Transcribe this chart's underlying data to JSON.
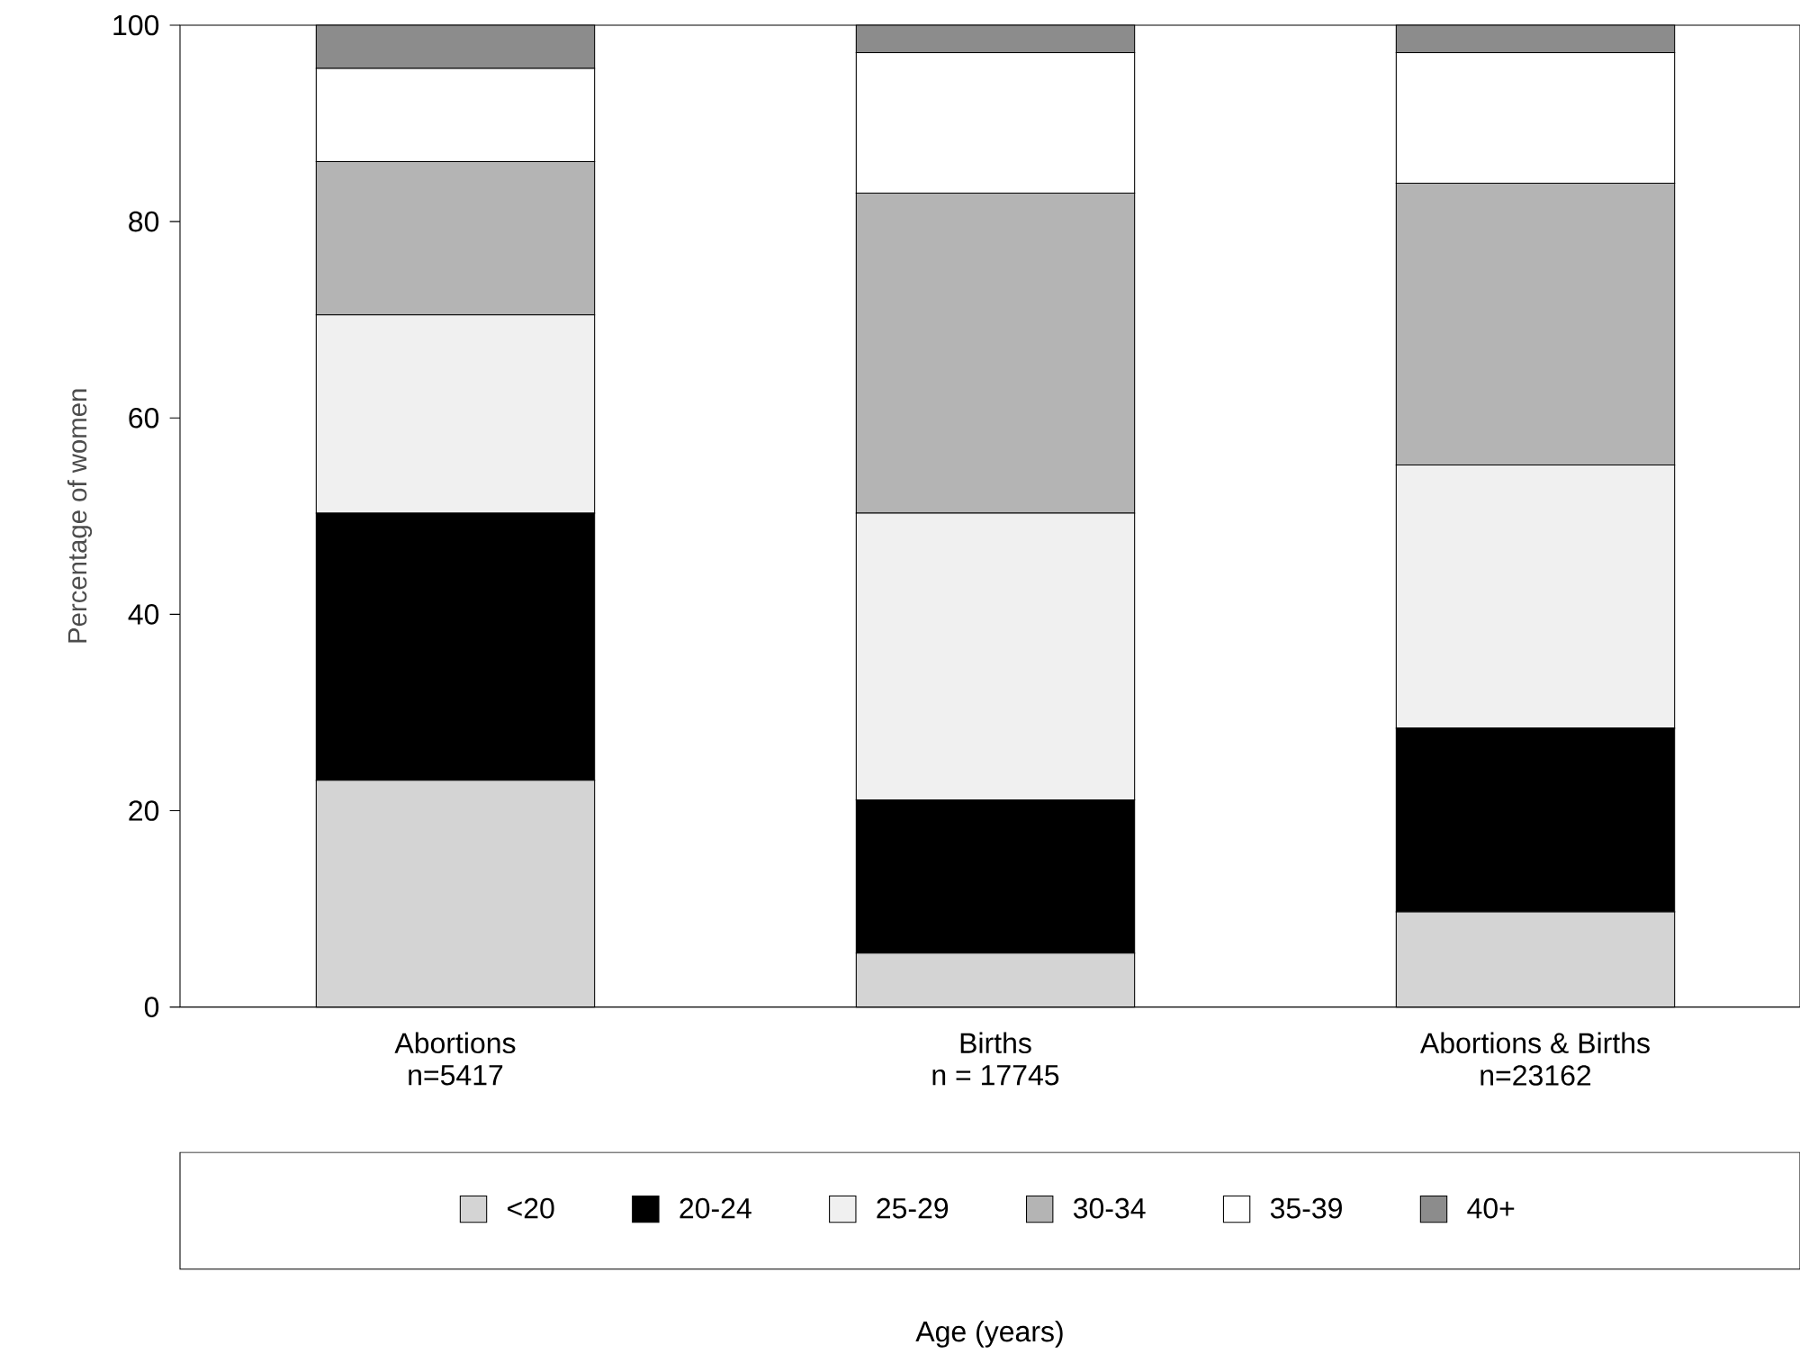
{
  "chart_data": {
    "type": "bar",
    "stacked": true,
    "ylabel": "Percentage of women",
    "legend_title": "Age (years)",
    "categories": [
      "Abortions",
      "Births",
      "Abortions & Births"
    ],
    "annotations": [
      "n=5417",
      "n = 17745",
      "n=23162"
    ],
    "series": [
      {
        "name": "<20",
        "color": "#d4d4d4",
        "values": [
          23.1,
          5.5,
          9.7
        ]
      },
      {
        "name": "20-24",
        "color": "#000000",
        "values": [
          27.2,
          15.6,
          18.7
        ]
      },
      {
        "name": "25-29",
        "color": "#f0f0f0",
        "values": [
          20.2,
          29.2,
          26.8
        ]
      },
      {
        "name": "30-34",
        "color": "#b4b4b4",
        "values": [
          15.6,
          32.6,
          28.7
        ]
      },
      {
        "name": "35-39",
        "color": "#ffffff",
        "values": [
          9.5,
          14.3,
          13.3
        ]
      },
      {
        "name": "40+",
        "color": "#8c8c8c",
        "values": [
          4.4,
          2.8,
          2.8
        ]
      }
    ],
    "ylim": [
      0,
      100
    ],
    "yticks": [
      0,
      20,
      40,
      60,
      80,
      100
    ],
    "legend": "bottom"
  }
}
